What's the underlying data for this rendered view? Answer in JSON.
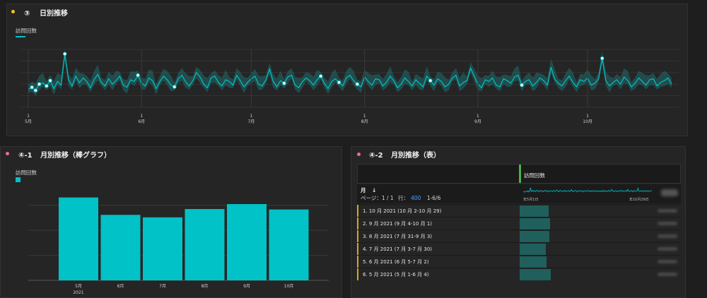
{
  "section3": {
    "badge": "③",
    "title": "日別推移",
    "dot_color": "#f5c518",
    "legend_label": "訪問回数",
    "series_color": "#00c2c7",
    "x_ticks": [
      {
        "day": "1",
        "month": "5月"
      },
      {
        "day": "1",
        "month": "6月"
      },
      {
        "day": "1",
        "month": "7月"
      },
      {
        "day": "1",
        "month": "8月"
      },
      {
        "day": "1",
        "month": "9月"
      },
      {
        "day": "1",
        "month": "10月"
      }
    ]
  },
  "section41": {
    "badge": "④-1",
    "title": "月別推移（棒グラフ）",
    "dot_color": "#e86aa6",
    "legend_label": "訪問回数",
    "year_label": "2021"
  },
  "section42": {
    "badge": "④-2",
    "title": "月別推移（表）",
    "dot_color": "#e86aa6",
    "metric_header": "訪問回数",
    "dim_header": "月",
    "sort_icon": "↓",
    "pagination": {
      "page_label": "ページ：",
      "page_value": "1 / 1",
      "rows_label": "行：",
      "rows_value": "400",
      "range": "1-6/6"
    },
    "spark_start": "年5月1日",
    "spark_end": "年10月29日",
    "rows": [
      {
        "label": "1. 10 月 2021 (10 月 2-10 月 29)",
        "value": 0.34
      },
      {
        "label": "2. 9 月 2021 (9 月 4-10 月 1)",
        "value": 0.36
      },
      {
        "label": "3. 8 月 2021 (7 月 31-9 月 3)",
        "value": 0.35
      },
      {
        "label": "4. 7 月 2021 (7 月 3-7 月 30)",
        "value": 0.31
      },
      {
        "label": "5. 6 月 2021 (6 月 5-7 月 2)",
        "value": 0.32
      },
      {
        "label": "6. 5 月 2021 (5 月 1-6 月 4)",
        "value": 0.37
      }
    ]
  },
  "chart_data": [
    {
      "type": "line",
      "title": "日別推移",
      "series": [
        {
          "name": "訪問回数",
          "color": "#00c2c7",
          "start_date": "2021-05-01",
          "values": [
            40,
            45,
            38,
            52,
            55,
            48,
            60,
            42,
            58,
            50,
            120,
            62,
            48,
            70,
            55,
            66,
            58,
            44,
            62,
            74,
            56,
            48,
            64,
            52,
            60,
            70,
            50,
            45,
            62,
            58,
            72,
            54,
            48,
            66,
            60,
            42,
            58,
            70,
            62,
            50,
            46,
            64,
            72,
            58,
            48,
            60,
            78,
            68,
            52,
            44,
            66,
            70,
            56,
            48,
            62,
            58,
            50,
            72,
            60,
            46,
            56,
            64,
            70,
            52,
            48,
            62,
            86,
            58,
            46,
            60,
            54,
            68,
            72,
            50,
            44,
            58,
            66,
            60,
            50,
            62,
            70,
            54,
            42,
            58,
            64,
            56,
            48,
            66,
            72,
            60,
            52,
            46,
            68,
            58,
            50,
            64,
            62,
            48,
            56,
            70,
            60,
            44,
            52,
            66,
            58,
            48,
            62,
            54,
            46,
            70,
            60,
            50,
            64,
            58,
            46,
            52,
            66,
            72,
            48,
            56,
            60,
            88,
            70,
            52,
            44,
            62,
            58,
            66,
            50,
            46,
            64,
            60,
            54,
            68,
            72,
            50,
            58,
            62,
            48,
            56,
            66,
            60,
            50,
            90,
            64,
            54,
            48,
            60,
            70,
            56,
            46,
            62,
            58,
            66,
            50,
            54,
            64,
            110,
            60,
            48,
            56,
            62,
            52,
            68,
            60,
            46,
            54,
            66,
            58,
            50,
            62,
            64,
            48,
            56,
            60,
            66,
            52
          ]
        }
      ]
    },
    {
      "type": "bar",
      "categories": [
        "5月",
        "6月",
        "7月",
        "8月",
        "9月",
        "10月"
      ],
      "series": [
        {
          "name": "訪問回数",
          "color": "#00c2c7",
          "values": [
            1000,
            790,
            760,
            860,
            920,
            855
          ]
        }
      ],
      "ylim": [
        0,
        1150
      ]
    }
  ]
}
